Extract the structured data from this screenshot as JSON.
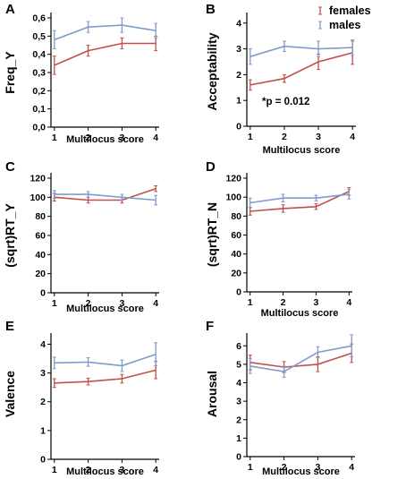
{
  "colors": {
    "females": "#c0504d",
    "males": "#7f9ccd",
    "axis": "#000000"
  },
  "legend": {
    "position": "top-right of panel B",
    "entries": [
      "females",
      "males"
    ]
  },
  "chart_data": [
    {
      "panel": "A",
      "type": "line",
      "ylabel": "Freq_Y",
      "xlabel": "Multilocus score",
      "x": [
        1,
        2,
        3,
        4
      ],
      "ylim": [
        0,
        0.6
      ],
      "yticks": [
        0,
        0.1,
        0.2,
        0.3,
        0.4,
        0.5,
        0.6
      ],
      "ytick_labels": [
        "0,0",
        "0,1",
        "0,2",
        "0,3",
        "0,4",
        "0,5",
        "0,6"
      ],
      "series": [
        {
          "name": "females",
          "values": [
            0.34,
            0.42,
            0.46,
            0.46
          ],
          "err": [
            0.05,
            0.03,
            0.03,
            0.04
          ]
        },
        {
          "name": "males",
          "values": [
            0.48,
            0.55,
            0.56,
            0.53
          ],
          "err": [
            0.05,
            0.03,
            0.04,
            0.04
          ]
        }
      ]
    },
    {
      "panel": "B",
      "type": "line",
      "ylabel": "Acceptability",
      "xlabel": "Multilocus  score",
      "x": [
        1,
        2,
        3,
        4
      ],
      "ylim": [
        0,
        4.2
      ],
      "yticks": [
        0,
        1,
        2,
        3,
        4
      ],
      "annotation": "*p = 0.012",
      "series": [
        {
          "name": "females",
          "values": [
            1.6,
            1.85,
            2.5,
            2.85
          ],
          "err": [
            0.2,
            0.15,
            0.3,
            0.45
          ]
        },
        {
          "name": "males",
          "values": [
            2.7,
            3.1,
            3.0,
            3.05
          ],
          "err": [
            0.3,
            0.2,
            0.3,
            0.3
          ]
        }
      ]
    },
    {
      "panel": "C",
      "type": "line",
      "ylabel": "(sqrt)RT_Y",
      "xlabel": "Multilocus score",
      "x": [
        1,
        2,
        3,
        4
      ],
      "ylim": [
        0,
        120
      ],
      "yticks": [
        0,
        20,
        40,
        60,
        80,
        100,
        120
      ],
      "series": [
        {
          "name": "females",
          "values": [
            100,
            97,
            97,
            109
          ],
          "err": [
            4,
            3,
            3,
            3
          ]
        },
        {
          "name": "males",
          "values": [
            103,
            103,
            100,
            97
          ],
          "err": [
            4,
            3,
            3,
            5
          ]
        }
      ]
    },
    {
      "panel": "D",
      "type": "line",
      "ylabel": "(sqrt)RT_N",
      "xlabel": "Multilocus score",
      "x": [
        1,
        2,
        3,
        4
      ],
      "ylim": [
        0,
        120
      ],
      "yticks": [
        0,
        20,
        40,
        60,
        80,
        100,
        120
      ],
      "series": [
        {
          "name": "females",
          "values": [
            85,
            88,
            90,
            106
          ],
          "err": [
            4,
            4,
            3,
            4
          ]
        },
        {
          "name": "males",
          "values": [
            94,
            99,
            99,
            103
          ],
          "err": [
            5,
            4,
            3,
            5
          ]
        }
      ]
    },
    {
      "panel": "E",
      "type": "line",
      "ylabel": "Valence",
      "xlabel": "Multilocus score",
      "x": [
        1,
        2,
        3,
        4
      ],
      "ylim": [
        0,
        4.2
      ],
      "yticks": [
        0,
        1,
        2,
        3,
        4
      ],
      "series": [
        {
          "name": "females",
          "values": [
            2.65,
            2.7,
            2.8,
            3.1
          ],
          "err": [
            0.15,
            0.12,
            0.15,
            0.3
          ]
        },
        {
          "name": "males",
          "values": [
            3.35,
            3.38,
            3.25,
            3.65
          ],
          "err": [
            0.2,
            0.15,
            0.2,
            0.4
          ]
        }
      ]
    },
    {
      "panel": "F",
      "type": "line",
      "ylabel": "Arousal",
      "xlabel": "Multilocus score",
      "x": [
        1,
        2,
        3,
        4
      ],
      "ylim": [
        0,
        6.4
      ],
      "yticks": [
        0,
        1,
        2,
        3,
        4,
        5,
        6
      ],
      "series": [
        {
          "name": "females",
          "values": [
            5.1,
            4.85,
            5.0,
            5.6
          ],
          "err": [
            0.4,
            0.3,
            0.4,
            0.5
          ]
        },
        {
          "name": "males",
          "values": [
            4.9,
            4.6,
            5.65,
            6.0
          ],
          "err": [
            0.4,
            0.3,
            0.3,
            0.6
          ]
        }
      ]
    }
  ]
}
